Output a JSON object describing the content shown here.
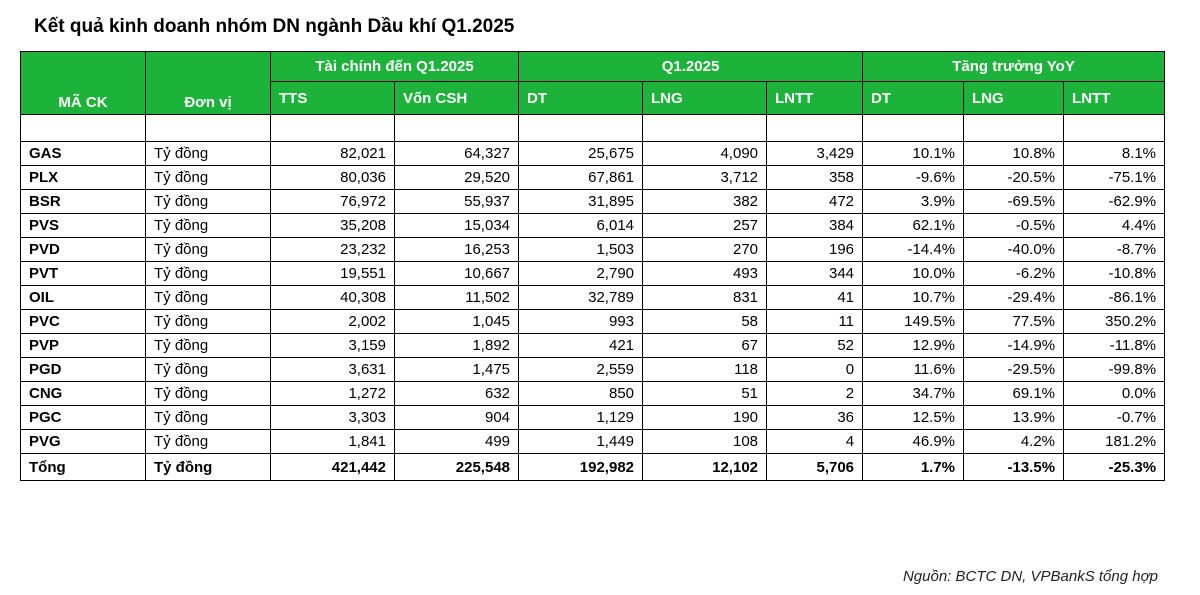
{
  "title": "Kết quả kinh doanh nhóm DN ngành Dầu khí Q1.2025",
  "header": {
    "ma_ck": "MÃ CK",
    "don_vi": "Đơn vị",
    "group_taichinh": "Tài chính đến Q1.2025",
    "group_q1": "Q1.2025",
    "group_growth": "Tăng trưởng YoY",
    "tts": "TTS",
    "von_csh": "Vốn CSH",
    "dt": "DT",
    "lng": "LNG",
    "lntt": "LNTT",
    "dt_yoy": "DT",
    "lng_yoy": "LNG",
    "lntt_yoy": "LNTT"
  },
  "rows": [
    {
      "code": "GAS",
      "unit": "Tỷ đồng",
      "tts": "82,021",
      "von": "64,327",
      "dt": "25,675",
      "lng": "4,090",
      "lntt": "3,429",
      "dt_yoy": "10.1%",
      "lng_yoy": "10.8%",
      "lntt_yoy": "8.1%"
    },
    {
      "code": "PLX",
      "unit": "Tỷ đồng",
      "tts": "80,036",
      "von": "29,520",
      "dt": "67,861",
      "lng": "3,712",
      "lntt": "358",
      "dt_yoy": "-9.6%",
      "lng_yoy": "-20.5%",
      "lntt_yoy": "-75.1%"
    },
    {
      "code": "BSR",
      "unit": "Tỷ đồng",
      "tts": "76,972",
      "von": "55,937",
      "dt": "31,895",
      "lng": "382",
      "lntt": "472",
      "dt_yoy": "3.9%",
      "lng_yoy": "-69.5%",
      "lntt_yoy": "-62.9%"
    },
    {
      "code": "PVS",
      "unit": "Tỷ đồng",
      "tts": "35,208",
      "von": "15,034",
      "dt": "6,014",
      "lng": "257",
      "lntt": "384",
      "dt_yoy": "62.1%",
      "lng_yoy": "-0.5%",
      "lntt_yoy": "4.4%"
    },
    {
      "code": "PVD",
      "unit": "Tỷ đồng",
      "tts": "23,232",
      "von": "16,253",
      "dt": "1,503",
      "lng": "270",
      "lntt": "196",
      "dt_yoy": "-14.4%",
      "lng_yoy": "-40.0%",
      "lntt_yoy": "-8.7%"
    },
    {
      "code": "PVT",
      "unit": "Tỷ đồng",
      "tts": "19,551",
      "von": "10,667",
      "dt": "2,790",
      "lng": "493",
      "lntt": "344",
      "dt_yoy": "10.0%",
      "lng_yoy": "-6.2%",
      "lntt_yoy": "-10.8%"
    },
    {
      "code": "OIL",
      "unit": "Tỷ đồng",
      "tts": "40,308",
      "von": "11,502",
      "dt": "32,789",
      "lng": "831",
      "lntt": "41",
      "dt_yoy": "10.7%",
      "lng_yoy": "-29.4%",
      "lntt_yoy": "-86.1%"
    },
    {
      "code": "PVC",
      "unit": "Tỷ đồng",
      "tts": "2,002",
      "von": "1,045",
      "dt": "993",
      "lng": "58",
      "lntt": "11",
      "dt_yoy": "149.5%",
      "lng_yoy": "77.5%",
      "lntt_yoy": "350.2%"
    },
    {
      "code": "PVP",
      "unit": "Tỷ đồng",
      "tts": "3,159",
      "von": "1,892",
      "dt": "421",
      "lng": "67",
      "lntt": "52",
      "dt_yoy": "12.9%",
      "lng_yoy": "-14.9%",
      "lntt_yoy": "-11.8%"
    },
    {
      "code": "PGD",
      "unit": "Tỷ đồng",
      "tts": "3,631",
      "von": "1,475",
      "dt": "2,559",
      "lng": "118",
      "lntt": "0",
      "dt_yoy": "11.6%",
      "lng_yoy": "-29.5%",
      "lntt_yoy": "-99.8%"
    },
    {
      "code": "CNG",
      "unit": "Tỷ đồng",
      "tts": "1,272",
      "von": "632",
      "dt": "850",
      "lng": "51",
      "lntt": "2",
      "dt_yoy": "34.7%",
      "lng_yoy": "69.1%",
      "lntt_yoy": "0.0%"
    },
    {
      "code": "PGC",
      "unit": "Tỷ đồng",
      "tts": "3,303",
      "von": "904",
      "dt": "1,129",
      "lng": "190",
      "lntt": "36",
      "dt_yoy": "12.5%",
      "lng_yoy": "13.9%",
      "lntt_yoy": "-0.7%"
    },
    {
      "code": "PVG",
      "unit": "Tỷ đồng",
      "tts": "1,841",
      "von": "499",
      "dt": "1,449",
      "lng": "108",
      "lntt": "4",
      "dt_yoy": "46.9%",
      "lng_yoy": "4.2%",
      "lntt_yoy": "181.2%"
    }
  ],
  "total": {
    "code": "Tổng",
    "unit": "Tỷ đồng",
    "tts": "421,442",
    "von": "225,548",
    "dt": "192,982",
    "lng": "12,102",
    "lntt": "5,706",
    "dt_yoy": "1.7%",
    "lng_yoy": "-13.5%",
    "lntt_yoy": "-25.3%"
  },
  "source_note": "Nguồn: BCTC DN, VPBankS tổng hợp",
  "colors": {
    "header_bg": "#1db33a",
    "header_text": "#ffffff"
  }
}
